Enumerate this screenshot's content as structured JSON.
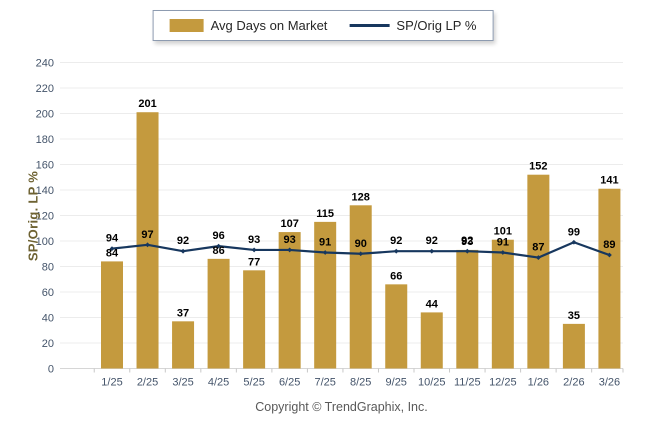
{
  "legend": {
    "bar_label": "Avg Days on Market",
    "line_label": "SP/Orig LP %"
  },
  "y_axis_title": "SP/Orig. LP %",
  "footer": {
    "copyright": "Copyright © TrendGraphix, Inc."
  },
  "colors": {
    "bar": "#C49A3E",
    "line": "#17375E",
    "marker": "#17375E",
    "value_label": "#000000",
    "axis_label": "#44546A",
    "y_title": "#6E6232",
    "gridline": "#ECECEC",
    "axis_line": "#D6D6D6",
    "tick": "#C8C8C8"
  },
  "chart_data": {
    "type": "bar",
    "categories": [
      "1/25",
      "2/25",
      "3/25",
      "4/25",
      "5/25",
      "6/25",
      "7/25",
      "8/25",
      "9/25",
      "10/25",
      "11/25",
      "12/25",
      "1/26",
      "2/26",
      "3/26"
    ],
    "series": [
      {
        "name": "Avg Days on Market",
        "type": "bar",
        "values": [
          84,
          201,
          37,
          86,
          77,
          107,
          115,
          128,
          66,
          44,
          93,
          101,
          152,
          35,
          141
        ]
      },
      {
        "name": "SP/Orig LP %",
        "type": "line",
        "values": [
          94,
          97,
          92,
          96,
          93,
          93,
          91,
          90,
          92,
          92,
          92,
          91,
          87,
          99,
          89
        ]
      }
    ],
    "title": "",
    "xlabel": "",
    "ylabel": "SP/Orig. LP %",
    "ylim": [
      0,
      240
    ],
    "ytick_step": 20,
    "grid": true,
    "legend_position": "top-center",
    "data_labels": true
  }
}
